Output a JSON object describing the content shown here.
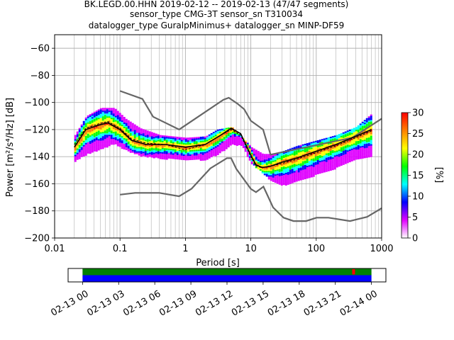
{
  "title_lines": [
    "BK.LEGD.00.HHN   2019-02-12 -- 2019-02-13  (47/47 segments)",
    "sensor_type CMG-3T sensor_sn T310034",
    "datalogger_type GuralpMinimus+ datalogger_sn MINP-DF59"
  ],
  "chart_data": [
    {
      "type": "heatmap",
      "subtype": "probabilistic-power-spectral-density",
      "xlabel": "Period [s]",
      "ylabel": "Power [m²/s⁴/Hz] [dB]",
      "x_scale": "log",
      "xlim": [
        0.01,
        1000
      ],
      "ylim": [
        -200,
        -50
      ],
      "x_ticks": [
        0.01,
        0.1,
        1,
        10,
        100,
        1000
      ],
      "x_tick_labels": [
        "0.01",
        "0.1",
        "1",
        "10",
        "100",
        "1000"
      ],
      "y_ticks": [
        -200,
        -180,
        -160,
        -140,
        -120,
        -100,
        -80,
        -60
      ],
      "y_tick_labels": [
        "−200",
        "−180",
        "−160",
        "−140",
        "−120",
        "−100",
        "−80",
        "−60"
      ],
      "grid": true,
      "colormap": [
        "#ffffff",
        "#e000ff",
        "#0000ff",
        "#00ffff",
        "#00ff00",
        "#ffff00",
        "#ff8000",
        "#ff0000"
      ],
      "colorbar": {
        "label": "[%]",
        "range": [
          0,
          30
        ],
        "ticks": [
          0,
          5,
          10,
          15,
          20,
          25,
          30
        ],
        "tick_labels": [
          "0",
          "5",
          "10",
          "15",
          "20",
          "25",
          "30"
        ]
      },
      "series": [
        {
          "role": "high-noise-model",
          "color": "#666666",
          "x": [
            0.1,
            0.22,
            0.32,
            0.8,
            3.8,
            4.6,
            6.3,
            7.9,
            10,
            15.4,
            20,
            354.8,
            1000
          ],
          "y": [
            -91.5,
            -97.4,
            -110.5,
            -120,
            -98,
            -96.5,
            -101,
            -105,
            -113.5,
            -120,
            -138.5,
            -126,
            -112
          ]
        },
        {
          "role": "low-noise-model",
          "color": "#666666",
          "x": [
            0.1,
            0.17,
            0.4,
            0.8,
            1.24,
            2.4,
            4.3,
            5,
            6,
            10,
            12,
            15.6,
            21.9,
            31.6,
            45,
            70,
            101,
            154,
            328,
            600,
            1000
          ],
          "y": [
            -168,
            -166.7,
            -166.7,
            -169.2,
            -163.7,
            -148.6,
            -141.1,
            -141.1,
            -149,
            -163.8,
            -166.2,
            -162.1,
            -177.5,
            -185,
            -187.5,
            -187.5,
            -185,
            -185,
            -187.5,
            -184.4,
            -178
          ]
        },
        {
          "role": "mean",
          "color": "#000000",
          "x": [
            0.02,
            0.03,
            0.045,
            0.065,
            0.1,
            0.15,
            0.25,
            0.5,
            1,
            2,
            3.5,
            5,
            7,
            10,
            12,
            15,
            20,
            30,
            50,
            100,
            200,
            400,
            700
          ],
          "y": [
            -133,
            -120,
            -117,
            -115,
            -120,
            -128,
            -131,
            -131,
            -133,
            -131,
            -124,
            -119,
            -123,
            -139,
            -146,
            -148,
            -147,
            -144,
            -141,
            -136,
            -131,
            -125,
            -120
          ]
        },
        {
          "role": "mode",
          "color": "#000000",
          "x": [
            0.02,
            0.03,
            0.045,
            0.065,
            0.1,
            0.15,
            0.25,
            0.5,
            1,
            2,
            3.5,
            5,
            7,
            10,
            12,
            15,
            20,
            30,
            50,
            100,
            200,
            400,
            700
          ],
          "y": [
            -131,
            -119,
            -116,
            -114,
            -119,
            -127,
            -130,
            -131,
            -135,
            -131,
            -124,
            -120,
            -124,
            -140,
            -147,
            -148,
            -147,
            -145,
            -142,
            -137,
            -132,
            -126,
            -121
          ]
        }
      ],
      "psd_envelope": {
        "x": [
          0.02,
          0.03,
          0.05,
          0.08,
          0.12,
          0.2,
          0.4,
          1,
          2,
          3,
          5,
          7,
          10,
          15,
          20,
          30,
          50,
          100,
          200,
          400,
          700
        ],
        "upper": [
          -124,
          -110,
          -104,
          -104,
          -112,
          -119,
          -124,
          -126,
          -125,
          -120,
          -118,
          -125,
          -133,
          -138,
          -138,
          -136,
          -132,
          -128,
          -124,
          -118,
          -108
        ],
        "lower": [
          -143,
          -138,
          -134,
          -130,
          -135,
          -139,
          -141,
          -142,
          -142,
          -138,
          -131,
          -131,
          -145,
          -152,
          -158,
          -161,
          -158,
          -153,
          -148,
          -142,
          -140
        ]
      }
    },
    {
      "type": "timeline",
      "subtype": "data-coverage",
      "x_tick_labels": [
        "02-13 00",
        "02-13 03",
        "02-13 06",
        "02-13 09",
        "02-13 12",
        "02-13 15",
        "02-13 18",
        "02-13 21",
        "02-14 00"
      ],
      "x_ticks_hours": [
        0,
        3,
        6,
        9,
        12,
        15,
        18,
        21,
        24
      ],
      "xlim_hours": [
        -1.2,
        25.2
      ],
      "coverage_hours": [
        0,
        24
      ],
      "bars": [
        {
          "role": "processed",
          "color": "#008000"
        },
        {
          "role": "available",
          "color": "#0000ff"
        }
      ],
      "marker_hours": 22.4,
      "marker_color": "#ff0000"
    }
  ]
}
